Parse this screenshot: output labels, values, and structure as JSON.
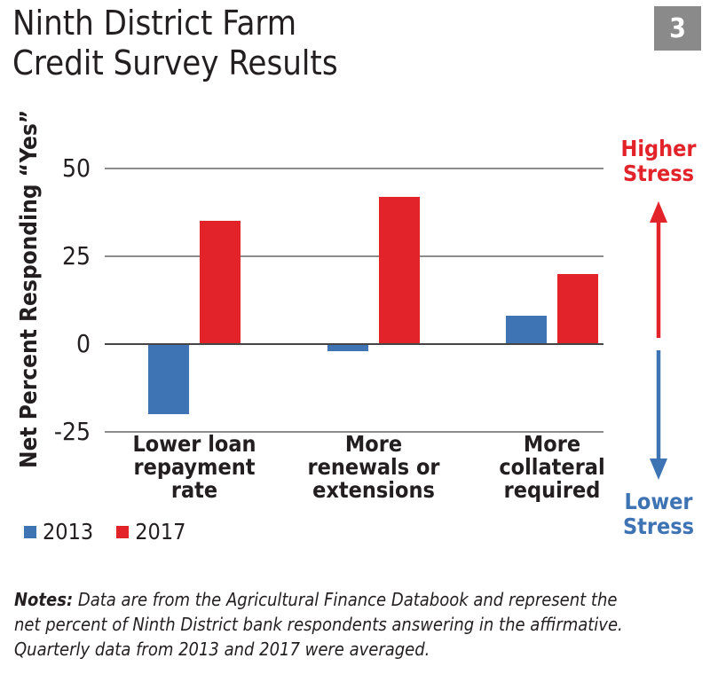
{
  "title": {
    "line1": "Ninth District Farm",
    "line2": "Credit Survey Results"
  },
  "badge": {
    "number": "3"
  },
  "colors": {
    "blue": "#3E73B4",
    "red": "#E2232A",
    "grid": "#8C8C8C",
    "zero_line": "#454545",
    "text": "#231F20",
    "badge_bg": "#8A8A8A",
    "badge_text": "#FFFFFF"
  },
  "chart_data": {
    "type": "bar",
    "title": "Ninth District Farm Credit Survey Results",
    "xlabel": "",
    "ylabel": "Net Percent Responding “Yes”",
    "categories": [
      "Lower loan\nrepayment\nrate",
      "More\nrenewals or\nextensions",
      "More\ncollateral\nrequired"
    ],
    "series": [
      {
        "name": "2013",
        "color": "#3E73B4",
        "values": [
          -20,
          -2,
          8
        ]
      },
      {
        "name": "2017",
        "color": "#E2232A",
        "values": [
          35,
          42,
          20
        ]
      }
    ],
    "y_ticks": [
      50,
      25,
      0,
      -25
    ],
    "ylim": [
      -30,
      58
    ],
    "grid": true,
    "legend_position": "bottom-left"
  },
  "annotations": {
    "higher": {
      "label": "Higher\nStress",
      "color": "#E2232A",
      "arrow": "up"
    },
    "lower": {
      "label": "Lower\nStress",
      "color": "#3E73B4",
      "arrow": "down"
    }
  },
  "notes": {
    "label": "Notes:",
    "line1": " Data are from the Agricultural Finance Databook and represent the",
    "line2": "net percent of Ninth District bank respondents answering in the affirmative.",
    "line3": "Quarterly data from 2013 and 2017 were averaged."
  }
}
